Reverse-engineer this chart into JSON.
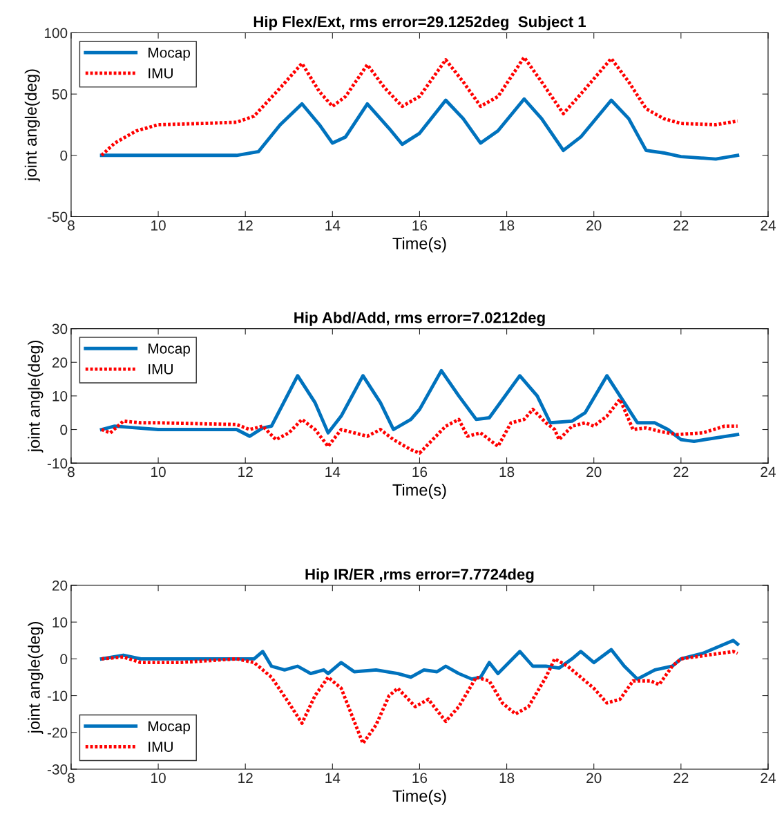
{
  "chart_data": [
    {
      "type": "line",
      "title": "Hip Flex/Ext, rms error=29.1252deg  Subject 1",
      "xlabel": "Time(s)",
      "ylabel": "joint angle(deg)",
      "xlim": [
        8,
        24
      ],
      "xticks": [
        8,
        10,
        12,
        14,
        16,
        18,
        20,
        22,
        24
      ],
      "ylim": [
        -50,
        100
      ],
      "yticks": [
        -50,
        0,
        50,
        100
      ],
      "grid": false,
      "legend": "top left",
      "series": [
        {
          "name": "Mocap",
          "color": "#0072bd",
          "line_style": "solid",
          "x": [
            8.7,
            10.0,
            11.8,
            12.3,
            12.8,
            13.3,
            13.7,
            14.0,
            14.3,
            14.8,
            15.3,
            15.6,
            16.0,
            16.6,
            17.0,
            17.4,
            17.8,
            18.4,
            18.8,
            19.3,
            19.7,
            20.4,
            20.8,
            21.2,
            21.6,
            22.0,
            22.8,
            23.3
          ],
          "values": [
            0,
            0,
            0,
            3,
            25,
            42,
            25,
            10,
            15,
            42,
            22,
            9,
            18,
            45,
            30,
            10,
            20,
            46,
            30,
            4,
            15,
            45,
            30,
            4,
            2,
            -1,
            -3,
            0
          ]
        },
        {
          "name": "IMU",
          "color": "#ff0000",
          "line_style": "dotted",
          "x": [
            8.7,
            9.0,
            9.5,
            10.0,
            11.0,
            11.8,
            12.2,
            12.8,
            13.3,
            13.7,
            14.0,
            14.3,
            14.8,
            15.2,
            15.6,
            16.0,
            16.6,
            17.0,
            17.4,
            17.8,
            18.4,
            18.8,
            19.3,
            19.7,
            20.4,
            20.8,
            21.2,
            21.6,
            22.0,
            22.8,
            23.3
          ],
          "values": [
            0,
            10,
            20,
            25,
            26,
            27,
            32,
            55,
            75,
            52,
            40,
            48,
            74,
            55,
            40,
            48,
            78,
            60,
            40,
            48,
            80,
            60,
            34,
            50,
            79,
            60,
            38,
            30,
            26,
            25,
            28
          ]
        }
      ]
    },
    {
      "type": "line",
      "title": "Hip Abd/Add, rms error=7.0212deg",
      "xlabel": "Time(s)",
      "ylabel": "joint angle(deg)",
      "xlim": [
        8,
        24
      ],
      "xticks": [
        8,
        10,
        12,
        14,
        16,
        18,
        20,
        22,
        24
      ],
      "ylim": [
        -10,
        30
      ],
      "yticks": [
        -10,
        0,
        10,
        20,
        30
      ],
      "grid": false,
      "legend": "top left",
      "series": [
        {
          "name": "Mocap",
          "color": "#0072bd",
          "line_style": "solid",
          "x": [
            8.7,
            9.0,
            9.5,
            10.0,
            11.8,
            12.1,
            12.4,
            12.6,
            13.2,
            13.6,
            13.9,
            14.2,
            14.7,
            15.1,
            15.4,
            15.8,
            16.0,
            16.5,
            16.9,
            17.3,
            17.6,
            18.3,
            18.7,
            19.0,
            19.5,
            19.8,
            20.3,
            20.7,
            21.0,
            21.4,
            21.7,
            22.0,
            22.3,
            23.3
          ],
          "values": [
            0,
            1,
            0.5,
            0,
            0,
            -2,
            0.5,
            1,
            16,
            8,
            -1,
            4,
            16,
            8,
            0,
            3,
            6,
            17.5,
            10,
            3,
            3.5,
            16,
            10,
            2,
            2.5,
            5,
            16,
            8,
            2,
            2,
            0,
            -3,
            -3.5,
            -1.5
          ]
        },
        {
          "name": "IMU",
          "color": "#ff0000",
          "line_style": "dotted",
          "x": [
            8.7,
            8.9,
            9.2,
            9.6,
            10.0,
            11.8,
            12.1,
            12.4,
            12.7,
            13.0,
            13.3,
            13.6,
            13.9,
            14.2,
            14.5,
            14.8,
            15.1,
            15.4,
            15.8,
            16.0,
            16.3,
            16.6,
            16.9,
            17.1,
            17.4,
            17.6,
            17.8,
            18.1,
            18.4,
            18.6,
            18.9,
            19.1,
            19.2,
            19.5,
            19.8,
            20.0,
            20.3,
            20.6,
            20.9,
            21.2,
            21.5,
            21.9,
            22.5,
            23.0,
            23.3
          ],
          "values": [
            0,
            -1,
            2.5,
            2,
            2,
            1.5,
            0,
            1,
            -3,
            -1,
            3,
            0,
            -5,
            0,
            -1,
            -2,
            0,
            -3,
            -6,
            -7,
            -3,
            1,
            3,
            -2,
            -1,
            -3,
            -5,
            2,
            3,
            6,
            2,
            0,
            -3,
            1,
            2,
            1,
            4,
            9,
            0,
            0.5,
            -0.5,
            -1.5,
            -1,
            1,
            1
          ]
        }
      ]
    },
    {
      "type": "line",
      "title": "Hip IR/ER ,rms error=7.7724deg",
      "xlabel": "Time(s)",
      "ylabel": "joint angle(deg)",
      "xlim": [
        8,
        24
      ],
      "xticks": [
        8,
        10,
        12,
        14,
        16,
        18,
        20,
        22,
        24
      ],
      "ylim": [
        -30,
        20
      ],
      "yticks": [
        -30,
        -20,
        -10,
        0,
        10,
        20
      ],
      "grid": false,
      "legend": "bottom left",
      "series": [
        {
          "name": "Mocap",
          "color": "#0072bd",
          "line_style": "solid",
          "x": [
            8.7,
            9.2,
            9.6,
            10.5,
            11.8,
            12.2,
            12.4,
            12.6,
            12.9,
            13.2,
            13.5,
            13.8,
            13.9,
            14.2,
            14.5,
            15.0,
            15.5,
            15.8,
            16.1,
            16.4,
            16.6,
            16.9,
            17.2,
            17.4,
            17.6,
            17.8,
            18.3,
            18.6,
            18.9,
            19.2,
            19.5,
            19.7,
            20.0,
            20.4,
            20.7,
            21.0,
            21.4,
            21.8,
            22.0,
            22.5,
            23.2,
            23.3
          ],
          "values": [
            0,
            1,
            0,
            0,
            0,
            0,
            2,
            -2,
            -3,
            -2,
            -4,
            -3,
            -4,
            -1,
            -3.5,
            -3,
            -4,
            -5,
            -3,
            -3.5,
            -2,
            -4,
            -5.5,
            -5,
            -1,
            -4,
            2,
            -2,
            -2,
            -2.5,
            0,
            2,
            -1,
            2.5,
            -2,
            -5.5,
            -3,
            -2,
            0,
            1.5,
            5,
            4
          ]
        },
        {
          "name": "IMU",
          "color": "#ff0000",
          "line_style": "dotted",
          "x": [
            8.7,
            9.2,
            9.6,
            10.5,
            11.8,
            12.2,
            12.6,
            13.0,
            13.3,
            13.6,
            13.9,
            14.2,
            14.7,
            15.0,
            15.3,
            15.5,
            15.9,
            16.2,
            16.6,
            16.9,
            17.3,
            17.6,
            17.9,
            18.2,
            18.5,
            18.9,
            19.1,
            19.4,
            19.7,
            20.0,
            20.3,
            20.6,
            20.9,
            21.3,
            21.5,
            21.8,
            22.0,
            23.2,
            23.3
          ],
          "values": [
            0,
            0.5,
            -1,
            -1,
            0,
            -1,
            -5,
            -12,
            -17.5,
            -10,
            -5,
            -8,
            -23,
            -18,
            -10,
            -8,
            -13,
            -11,
            -17,
            -13,
            -5,
            -6,
            -12,
            -15,
            -13,
            -5,
            0,
            -2,
            -5,
            -8,
            -12,
            -11,
            -6,
            -6,
            -7,
            -2,
            0,
            2,
            1.5
          ]
        }
      ]
    }
  ]
}
